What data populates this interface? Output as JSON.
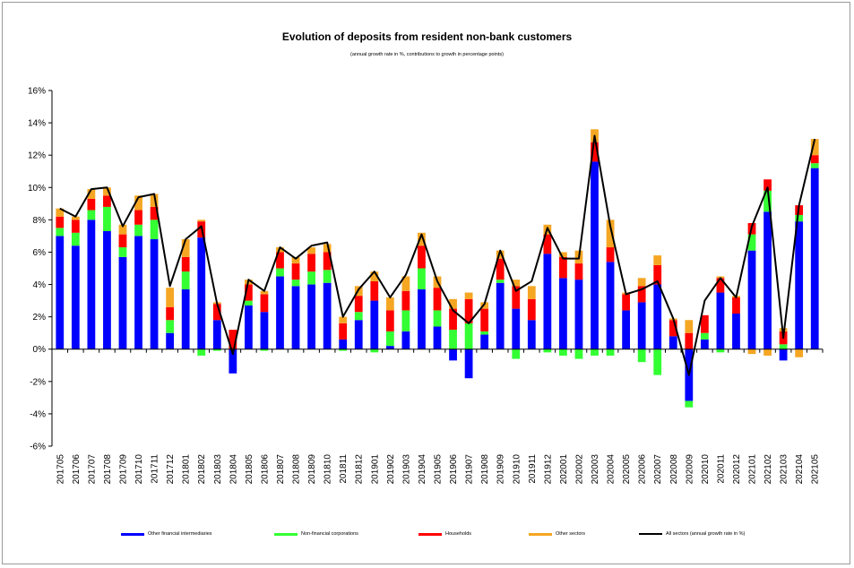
{
  "chart_data": {
    "type": "bar",
    "stacked": true,
    "title": "Evolution of deposits from resident non-bank customers",
    "subtitle": "(annual growth rate in %, contributions to growth in percentage points)",
    "ylim": [
      -6,
      16
    ],
    "yticks": [
      "-6%",
      "-4%",
      "-2%",
      "0%",
      "2%",
      "4%",
      "6%",
      "8%",
      "10%",
      "12%",
      "14%",
      "16%"
    ],
    "categories": [
      "201705",
      "201706",
      "201707",
      "201708",
      "201709",
      "201710",
      "201711",
      "201712",
      "201801",
      "201802",
      "201803",
      "201804",
      "201805",
      "201806",
      "201807",
      "201808",
      "201809",
      "201810",
      "201811",
      "201812",
      "201901",
      "201902",
      "201903",
      "201904",
      "201905",
      "201906",
      "201907",
      "201908",
      "201909",
      "201910",
      "201911",
      "201912",
      "202001",
      "202002",
      "202003",
      "202004",
      "202005",
      "202006",
      "202007",
      "202008",
      "202009",
      "202010",
      "202011",
      "202012",
      "202101",
      "202102",
      "202103",
      "202104",
      "202105"
    ],
    "series": [
      {
        "name": "Other financial intermediaries",
        "color": "#0000ff",
        "kind": "bar",
        "values": [
          7.0,
          6.4,
          8.0,
          7.3,
          5.7,
          7.0,
          6.8,
          1.0,
          3.7,
          6.9,
          1.8,
          -1.5,
          2.7,
          2.3,
          4.5,
          3.9,
          4.0,
          4.1,
          0.6,
          1.8,
          3.0,
          0.2,
          1.1,
          3.7,
          1.4,
          -0.7,
          -1.8,
          0.9,
          4.1,
          2.5,
          1.8,
          5.9,
          4.4,
          4.3,
          11.6,
          5.4,
          2.4,
          2.9,
          4.0,
          0.8,
          -3.2,
          0.6,
          3.5,
          2.2,
          6.1,
          8.5,
          -0.7,
          7.9,
          11.2
        ]
      },
      {
        "name": "Non-financial corporations",
        "color": "#33ff33",
        "kind": "bar",
        "values": [
          0.5,
          0.8,
          0.6,
          1.5,
          0.6,
          0.7,
          1.2,
          0.8,
          1.1,
          -0.4,
          -0.1,
          0.0,
          0.3,
          -0.1,
          0.5,
          0.4,
          0.8,
          0.8,
          -0.1,
          0.5,
          -0.2,
          0.9,
          1.3,
          1.3,
          1.0,
          1.2,
          1.6,
          0.2,
          0.2,
          -0.6,
          0.0,
          -0.2,
          -0.4,
          -0.6,
          -0.4,
          -0.4,
          0.0,
          -0.8,
          -1.6,
          0.0,
          -0.4,
          0.4,
          -0.2,
          0.0,
          1.0,
          1.3,
          0.3,
          0.4,
          0.3
        ]
      },
      {
        "name": "Households",
        "color": "#ff0000",
        "kind": "bar",
        "values": [
          0.7,
          0.8,
          0.7,
          0.7,
          0.8,
          0.9,
          0.8,
          0.8,
          0.9,
          1.0,
          1.0,
          1.2,
          1.0,
          1.1,
          1.0,
          1.0,
          1.1,
          1.1,
          1.0,
          1.0,
          1.2,
          1.3,
          1.2,
          1.4,
          1.4,
          1.3,
          1.5,
          1.4,
          1.3,
          1.4,
          1.3,
          1.2,
          1.3,
          1.0,
          1.2,
          0.9,
          1.0,
          1.0,
          1.2,
          1.0,
          1.0,
          1.1,
          0.9,
          1.0,
          0.7,
          0.7,
          0.8,
          0.6,
          0.5
        ]
      },
      {
        "name": "Other sectors",
        "color": "#f5a623",
        "kind": "bar",
        "values": [
          0.5,
          0.2,
          0.6,
          0.5,
          0.6,
          0.9,
          0.8,
          1.2,
          1.1,
          0.1,
          0.1,
          0.0,
          0.3,
          0.2,
          0.3,
          0.4,
          0.4,
          0.5,
          0.4,
          0.6,
          0.6,
          0.8,
          0.9,
          0.8,
          0.7,
          0.6,
          0.4,
          0.4,
          0.5,
          0.4,
          0.8,
          0.6,
          0.3,
          0.8,
          0.8,
          1.7,
          0.1,
          0.5,
          0.6,
          0.1,
          0.8,
          0.0,
          0.1,
          0.1,
          -0.3,
          -0.4,
          0.2,
          -0.5,
          1.0
        ]
      },
      {
        "name": "All sectors (annual growth rate in %)",
        "color": "#000000",
        "kind": "line",
        "values": [
          8.7,
          8.2,
          9.9,
          10.0,
          7.6,
          9.4,
          9.6,
          3.9,
          6.8,
          7.6,
          2.8,
          -0.3,
          4.3,
          3.6,
          6.3,
          5.6,
          6.4,
          6.6,
          2.0,
          3.7,
          4.8,
          3.2,
          4.6,
          7.1,
          4.2,
          2.4,
          1.6,
          2.8,
          6.1,
          3.6,
          4.2,
          7.5,
          5.6,
          5.6,
          13.2,
          7.6,
          3.4,
          3.7,
          4.2,
          1.9,
          -1.6,
          3.0,
          4.4,
          3.2,
          7.6,
          10.0,
          0.7,
          8.9,
          13.0
        ]
      }
    ],
    "legend_position": "bottom",
    "grid": false
  }
}
